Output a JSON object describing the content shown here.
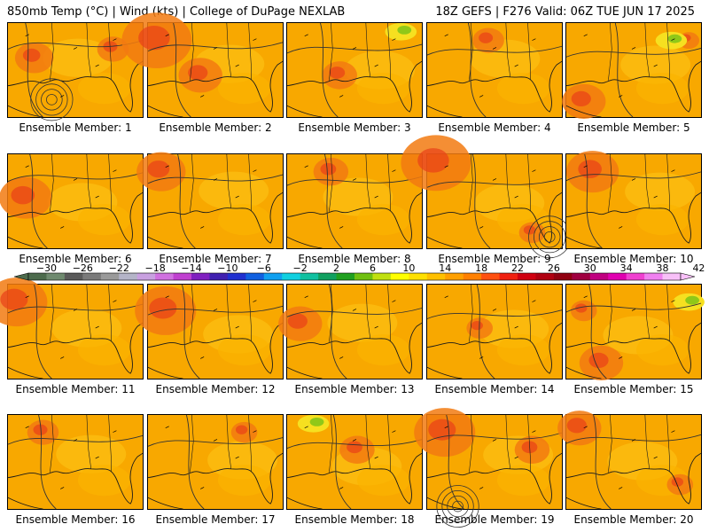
{
  "header": {
    "left_title": "850mb Temp (°C) | Wind (kts) | College of DuPage NEXLAB",
    "right_title": "18Z GEFS | F276 Valid: 06Z TUE JUN 17 2025"
  },
  "members": [
    {
      "label": "Ensemble Member: 1",
      "number": 1
    },
    {
      "label": "Ensemble Member: 2",
      "number": 2
    },
    {
      "label": "Ensemble Member: 3",
      "number": 3
    },
    {
      "label": "Ensemble Member: 4",
      "number": 4
    },
    {
      "label": "Ensemble Member: 5",
      "number": 5
    },
    {
      "label": "Ensemble Member: 6",
      "number": 6
    },
    {
      "label": "Ensemble Member: 7",
      "number": 7
    },
    {
      "label": "Ensemble Member: 8",
      "number": 8
    },
    {
      "label": "Ensemble Member: 9",
      "number": 9
    },
    {
      "label": "Ensemble Member: 10",
      "number": 10
    },
    {
      "label": "Ensemble Member: 11",
      "number": 11
    },
    {
      "label": "Ensemble Member: 12",
      "number": 12
    },
    {
      "label": "Ensemble Member: 13",
      "number": 13
    },
    {
      "label": "Ensemble Member: 14",
      "number": 14
    },
    {
      "label": "Ensemble Member: 15",
      "number": 15
    },
    {
      "label": "Ensemble Member: 16",
      "number": 16
    },
    {
      "label": "Ensemble Member: 17",
      "number": 17
    },
    {
      "label": "Ensemble Member: 18",
      "number": 18
    },
    {
      "label": "Ensemble Member: 19",
      "number": 19
    },
    {
      "label": "Ensemble Member: 20",
      "number": 20
    }
  ],
  "colorbar": {
    "tick_labels": [
      "−30",
      "−26",
      "−22",
      "−18",
      "−14",
      "−10",
      "−6",
      "−2",
      "2",
      "6",
      "10",
      "14",
      "18",
      "22",
      "26",
      "30",
      "34",
      "38",
      "42"
    ],
    "colors": [
      "#4d6b4d",
      "#6f8a6f",
      "#5a5a5a",
      "#7a7a7a",
      "#9a9a9a",
      "#b4b4c8",
      "#c8a0e0",
      "#d070e0",
      "#c040d0",
      "#8020c0",
      "#4020b0",
      "#2030d0",
      "#1060e0",
      "#10a0f0",
      "#10d0e0",
      "#10c0a0",
      "#10a060",
      "#20a020",
      "#70c010",
      "#c0e010",
      "#ffff00",
      "#ffe000",
      "#ffc000",
      "#ffa000",
      "#ff8000",
      "#ff5010",
      "#f02010",
      "#d00010",
      "#b00010",
      "#900010",
      "#a00040",
      "#c00080",
      "#e000b0",
      "#f040d0",
      "#f080f0",
      "#f8c0f8"
    ]
  }
}
